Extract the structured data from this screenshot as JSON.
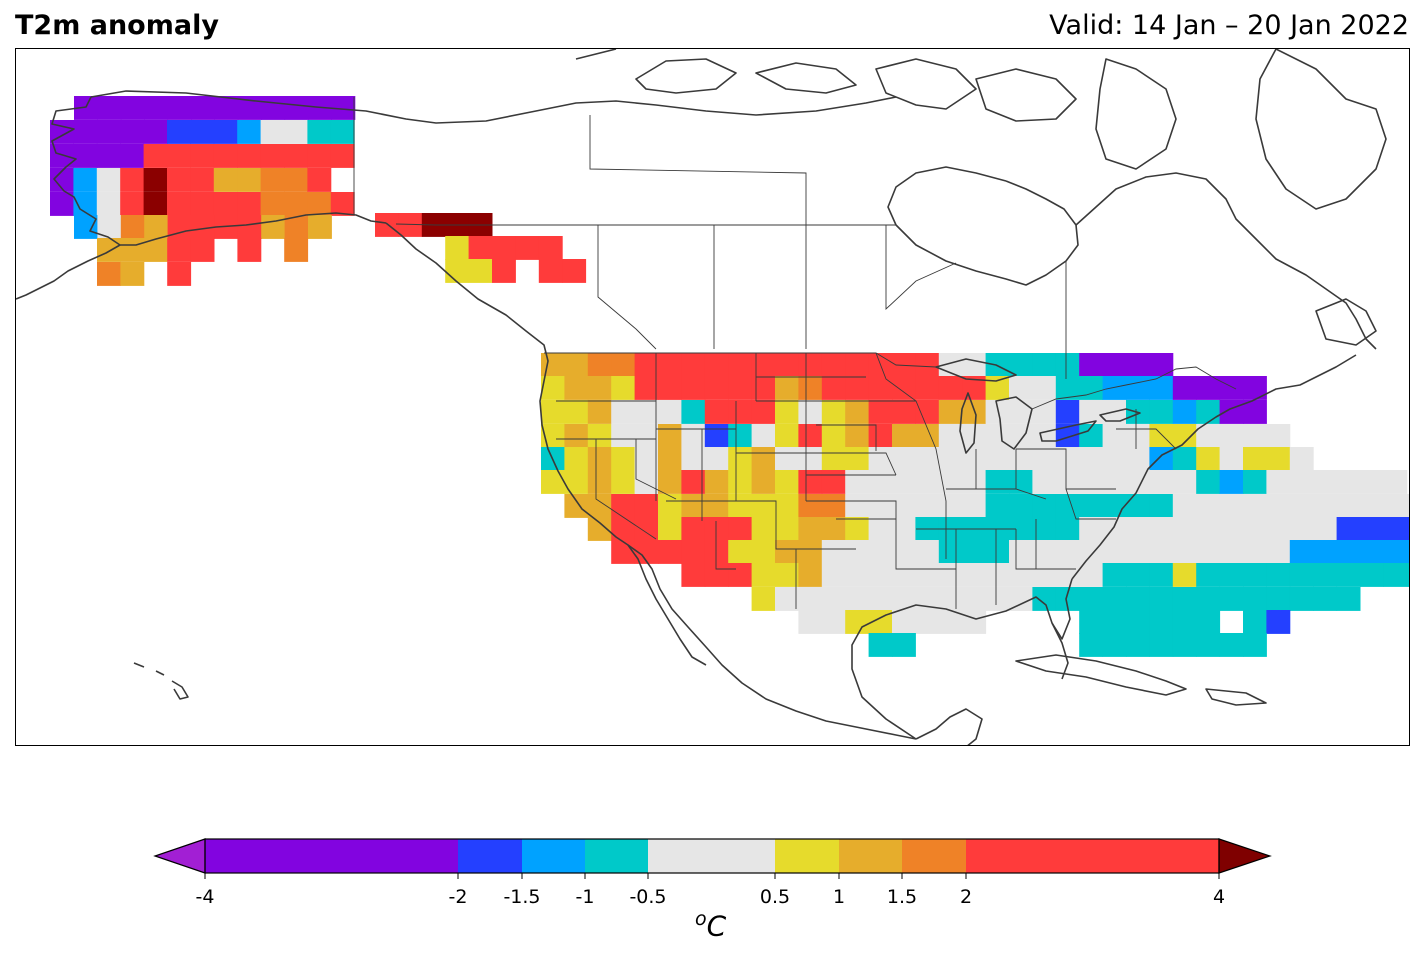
{
  "header": {
    "title": "T2m anomaly",
    "valid": "Valid: 14 Jan – 20 Jan 2022"
  },
  "colorbar": {
    "unit_base": "C",
    "unit_sup": "o",
    "ticks": [
      "-4",
      "-2",
      "-1.5",
      "-1",
      "-0.5",
      "0.5",
      "1",
      "1.5",
      "2",
      "4"
    ],
    "extend_low_color": "#a21fd4",
    "extend_high_color": "#7f0000",
    "bins": [
      {
        "from": -4,
        "to": -2,
        "color": "#8204e0"
      },
      {
        "from": -2,
        "to": -1.5,
        "color": "#2440ff"
      },
      {
        "from": -1.5,
        "to": -1,
        "color": "#00a2ff"
      },
      {
        "from": -1,
        "to": -0.5,
        "color": "#00c9c9"
      },
      {
        "from": -0.5,
        "to": 0.5,
        "color": "#e6e6e6"
      },
      {
        "from": 0.5,
        "to": 1,
        "color": "#e6db2c"
      },
      {
        "from": 1,
        "to": 1.5,
        "color": "#e6ad2c"
      },
      {
        "from": 1.5,
        "to": 2,
        "color": "#ef8227"
      },
      {
        "from": 2,
        "to": 4,
        "color": "#ff3b3b"
      }
    ]
  },
  "map": {
    "colors": {
      "P": "#8204e0",
      "B": "#2440ff",
      "S": "#00a2ff",
      "C": "#00c9c9",
      "G": "#e6e6e6",
      "Y": "#e6db2c",
      "L": "#e6ad2c",
      "O": "#ef8227",
      "R": "#ff3b3b",
      "D": "#8b0000"
    }
  }
}
